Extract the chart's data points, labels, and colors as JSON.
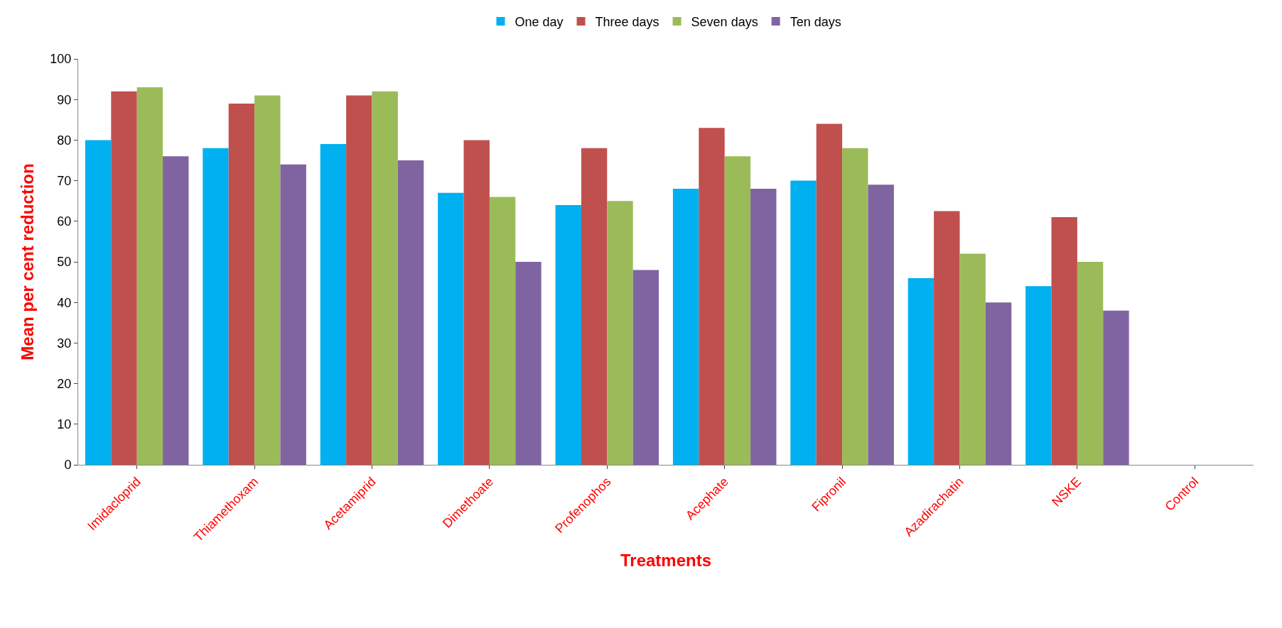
{
  "chart_data": {
    "type": "bar",
    "xlabel": "Treatments",
    "ylabel": "Mean per cent reduction",
    "categories": [
      "Imidacloprid",
      "Thiamethoxam",
      "Acetamiprid",
      "Dimethoate",
      "Profenophos",
      "Acephate",
      "Fipronil",
      "Azadirachatin",
      "NSKE",
      "Control"
    ],
    "series": [
      {
        "name": "One day",
        "color": "#00b0f0",
        "values": [
          80,
          78,
          79,
          67,
          64,
          68,
          70,
          46,
          44,
          0
        ]
      },
      {
        "name": "Three days",
        "color": "#c0504d",
        "values": [
          92,
          89,
          91,
          80,
          78,
          83,
          84,
          62.5,
          61,
          0
        ]
      },
      {
        "name": "Seven days",
        "color": "#9bbb59",
        "values": [
          93,
          91,
          92,
          66,
          65,
          76,
          78,
          52,
          50,
          0
        ]
      },
      {
        "name": "Ten days",
        "color": "#8064a2",
        "values": [
          76,
          74,
          75,
          50,
          48,
          68,
          69,
          40,
          38,
          0
        ]
      }
    ],
    "ylim": [
      0,
      100
    ],
    "yticks": [
      0,
      10,
      20,
      30,
      40,
      50,
      60,
      70,
      80,
      90,
      100
    ],
    "legend": "top"
  }
}
